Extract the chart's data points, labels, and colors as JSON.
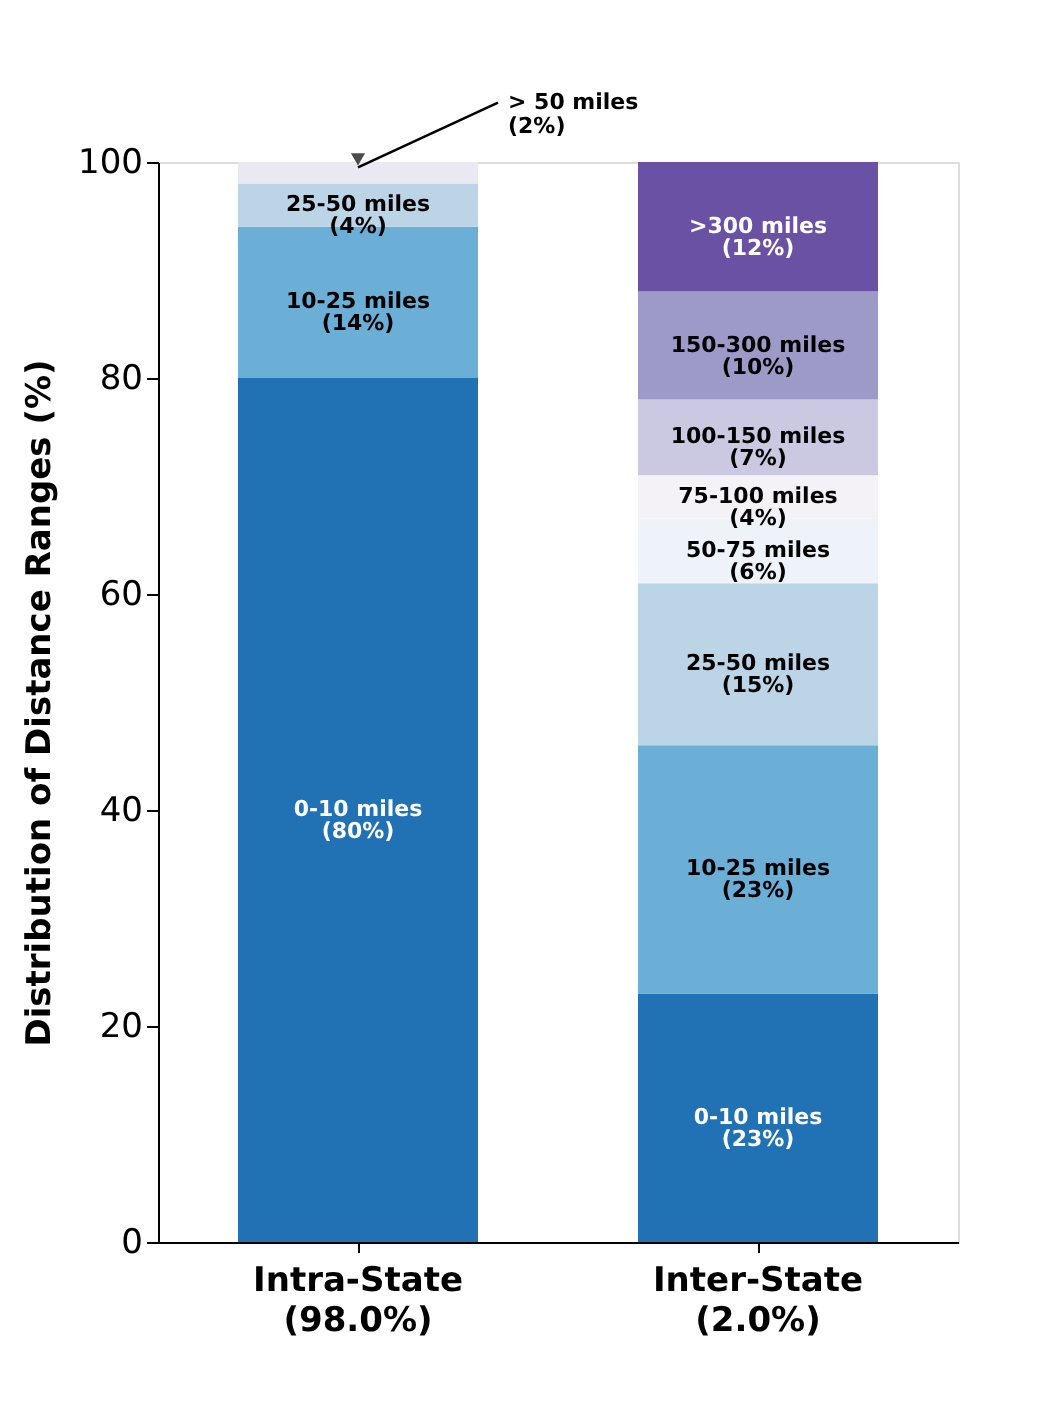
{
  "chart_data": {
    "type": "bar",
    "stacked": true,
    "ylabel": "Distribution of Distance Ranges (%)",
    "categories": [
      "Intra-State\n(98.0%)",
      "Inter-State\n(2.0%)"
    ],
    "ylim": [
      0,
      100
    ],
    "yticks": [
      0,
      20,
      40,
      60,
      80,
      100
    ],
    "grid": false,
    "legend": false,
    "series": [
      {
        "name": "0-10 miles",
        "color": "#2171b5",
        "values": [
          80,
          23
        ],
        "value_labels": [
          "(80%)",
          "(23%)"
        ]
      },
      {
        "name": "10-25 miles",
        "color": "#6baed6",
        "values": [
          14,
          23
        ],
        "value_labels": [
          "(14%)",
          "(23%)"
        ]
      },
      {
        "name": "25-50 miles",
        "color": "#bcd5e6",
        "values": [
          4,
          15
        ],
        "value_labels": [
          "(4%)",
          "(15%)"
        ]
      },
      {
        "name": "> 50 miles",
        "color": "#eae8f3",
        "values": [
          2,
          null
        ],
        "value_labels": [
          "(2%)",
          null
        ]
      },
      {
        "name": "50-75 miles",
        "color": "#eef3fa",
        "values": [
          null,
          6
        ],
        "value_labels": [
          null,
          "(6%)"
        ]
      },
      {
        "name": "75-100 miles",
        "color": "#f4f1f7",
        "values": [
          null,
          4
        ],
        "value_labels": [
          null,
          "(4%)"
        ]
      },
      {
        "name": "100-150 miles",
        "color": "#cbc9e2",
        "values": [
          null,
          7
        ],
        "value_labels": [
          null,
          "(7%)"
        ]
      },
      {
        "name": "150-300 miles",
        "color": "#9e9ac8",
        "values": [
          null,
          10
        ],
        "value_labels": [
          null,
          "(10%)"
        ]
      },
      {
        "name": ">300 miles",
        "color": "#6a51a3",
        "values": [
          null,
          12
        ],
        "value_labels": [
          null,
          "(12%)"
        ]
      }
    ]
  }
}
